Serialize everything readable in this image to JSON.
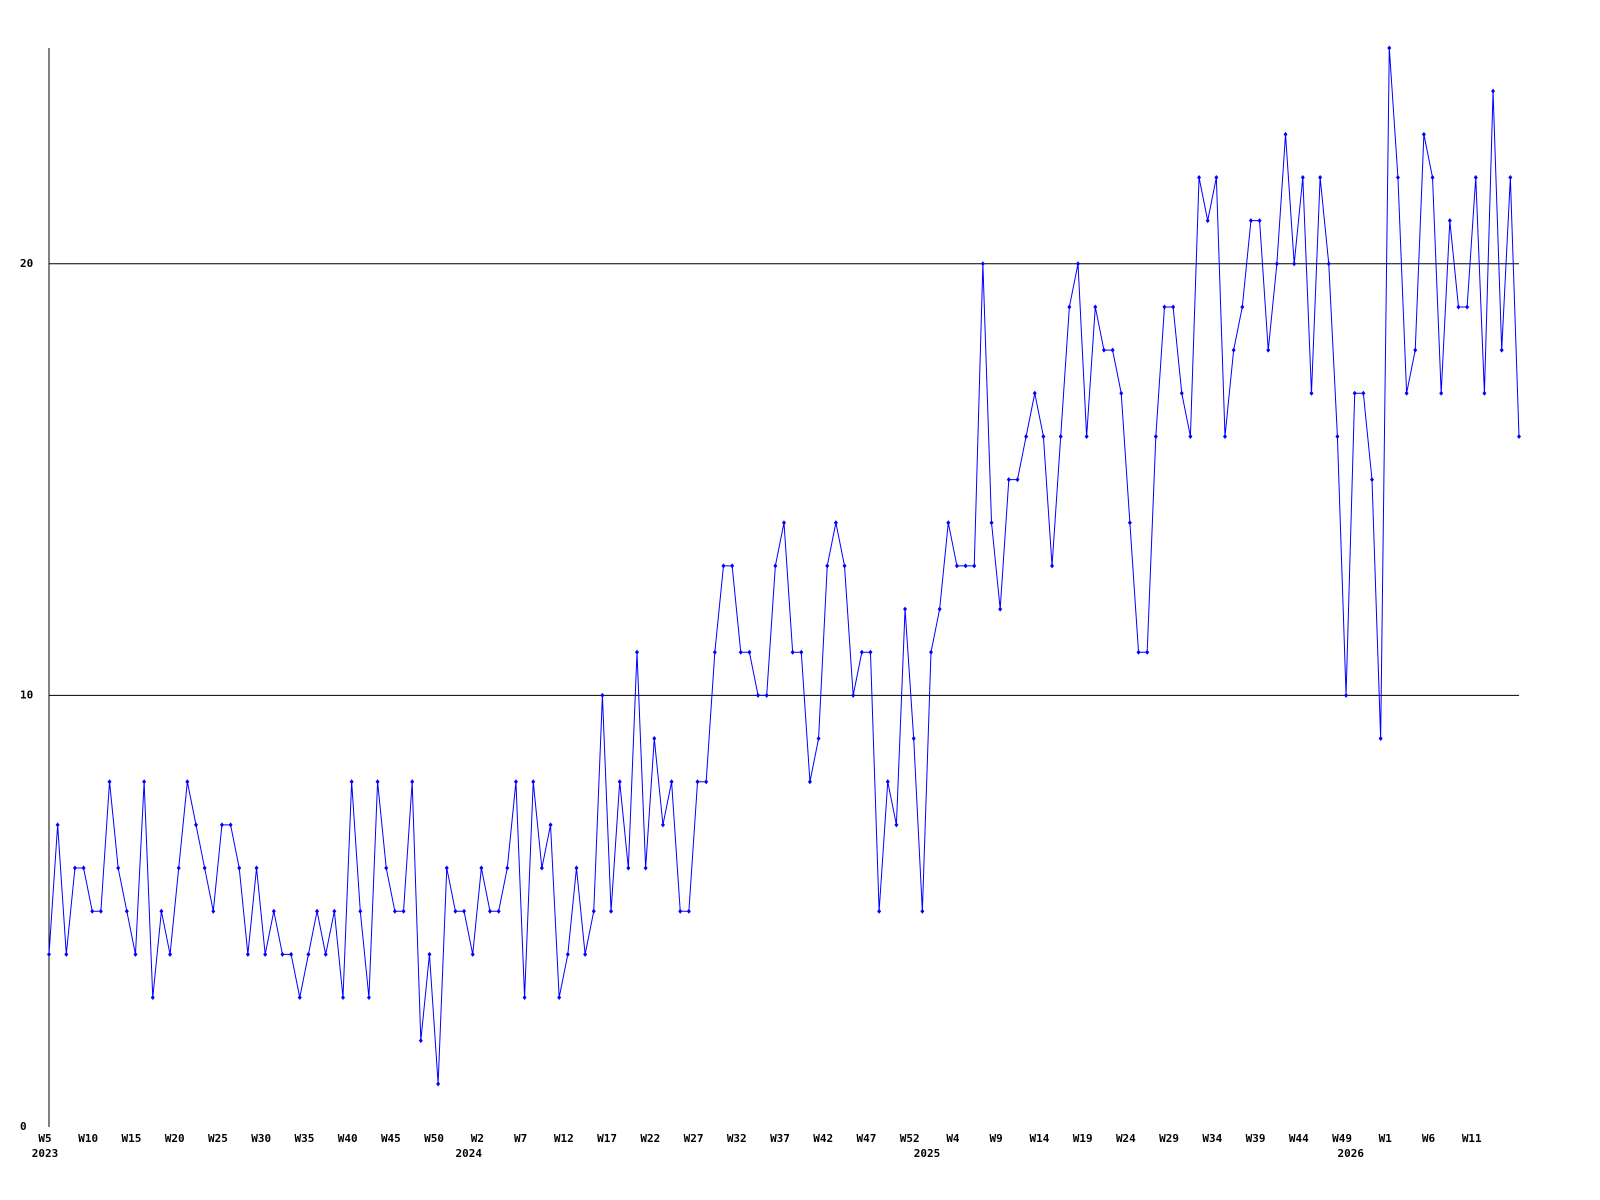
{
  "chart_data": {
    "type": "line",
    "categories": [
      "W5",
      null,
      null,
      null,
      null,
      "W10",
      null,
      null,
      null,
      null,
      "W15",
      null,
      null,
      null,
      null,
      "W20",
      null,
      null,
      null,
      null,
      "W25",
      null,
      null,
      null,
      null,
      "W30",
      null,
      null,
      null,
      null,
      "W35",
      null,
      null,
      null,
      null,
      "W40",
      null,
      null,
      null,
      null,
      "W45",
      null,
      null,
      null,
      null,
      "W50",
      null,
      null,
      null,
      null,
      "W2",
      null,
      null,
      null,
      null,
      "W7",
      null,
      null,
      null,
      null,
      "W12",
      null,
      null,
      null,
      null,
      "W17",
      null,
      null,
      null,
      null,
      "W22",
      null,
      null,
      null,
      null,
      "W27",
      null,
      null,
      null,
      null,
      "W32",
      null,
      null,
      null,
      null,
      "W37",
      null,
      null,
      null,
      null,
      "W42",
      null,
      null,
      null,
      null,
      "W47",
      null,
      null,
      null,
      null,
      "W52",
      null,
      null,
      null,
      null,
      "W4",
      null,
      null,
      null,
      null,
      "W9",
      null,
      null,
      null,
      null,
      "W14",
      null,
      null,
      null,
      null,
      "W19",
      null,
      null,
      null,
      null,
      "W24",
      null,
      null,
      null,
      null,
      "W29",
      null,
      null,
      null,
      null,
      "W34",
      null,
      null,
      null,
      null,
      "W39",
      null,
      null,
      null,
      null,
      "W44",
      null,
      null,
      null,
      null,
      "W49",
      null,
      null,
      null,
      null,
      "W1",
      null,
      null,
      null,
      null,
      "W6",
      null,
      null,
      null,
      null,
      "W11",
      null,
      null,
      null,
      null,
      null
    ],
    "years": [
      "2023",
      null,
      null,
      null,
      null,
      null,
      null,
      null,
      null,
      null,
      null,
      null,
      null,
      null,
      null,
      null,
      null,
      null,
      null,
      null,
      null,
      null,
      null,
      null,
      null,
      null,
      null,
      null,
      null,
      null,
      null,
      null,
      null,
      null,
      null,
      null,
      null,
      null,
      null,
      null,
      null,
      null,
      null,
      null,
      null,
      null,
      null,
      null,
      null,
      "2024",
      null,
      null,
      null,
      null,
      null,
      null,
      null,
      null,
      null,
      null,
      null,
      null,
      null,
      null,
      null,
      null,
      null,
      null,
      null,
      null,
      null,
      null,
      null,
      null,
      null,
      null,
      null,
      null,
      null,
      null,
      null,
      null,
      null,
      null,
      null,
      null,
      null,
      null,
      null,
      null,
      null,
      null,
      null,
      null,
      null,
      null,
      null,
      null,
      null,
      null,
      null,
      null,
      "2025",
      null,
      null,
      null,
      null,
      null,
      null,
      null,
      null,
      null,
      null,
      null,
      null,
      null,
      null,
      null,
      null,
      null,
      null,
      null,
      null,
      null,
      null,
      null,
      null,
      null,
      null,
      null,
      null,
      null,
      null,
      null,
      null,
      null,
      null,
      null,
      null,
      null,
      null,
      null,
      null,
      null,
      null,
      null,
      null,
      null,
      null,
      null,
      null,
      "2026",
      null,
      null,
      null,
      null,
      null,
      null,
      null,
      null,
      null,
      null,
      null,
      null,
      null,
      null,
      null
    ],
    "series": [
      {
        "color": "#0000ff",
        "values": [
          4,
          7,
          4,
          6,
          6,
          5,
          5,
          8,
          6,
          5,
          4,
          8,
          3,
          5,
          4,
          6,
          8,
          7,
          6,
          5,
          7,
          7,
          6,
          4,
          6,
          4,
          5,
          4,
          4,
          3,
          4,
          5,
          4,
          5,
          3,
          8,
          5,
          3,
          8,
          6,
          5,
          5,
          8,
          2,
          4,
          1,
          6,
          5,
          5,
          4,
          6,
          5,
          5,
          6,
          8,
          3,
          8,
          6,
          7,
          3,
          4,
          6,
          4,
          5,
          10,
          5,
          8,
          6,
          11,
          6,
          9,
          7,
          8,
          5,
          5,
          8,
          8,
          11,
          13,
          13,
          11,
          11,
          10,
          10,
          13,
          14,
          11,
          11,
          8,
          9,
          13,
          14,
          13,
          10,
          11,
          11,
          5,
          8,
          7,
          12,
          9,
          5,
          11,
          12,
          14,
          13,
          13,
          13,
          20,
          14,
          12,
          15,
          15,
          16,
          17,
          16,
          13,
          16,
          19,
          20,
          16,
          19,
          18,
          18,
          17,
          14,
          11,
          11,
          16,
          19,
          19,
          17,
          16,
          22,
          21,
          22,
          16,
          18,
          19,
          21,
          21,
          18,
          20,
          23,
          20,
          22,
          17,
          22,
          20,
          16,
          10,
          17,
          17,
          15,
          9,
          25,
          22,
          17,
          18,
          23,
          22,
          17,
          21,
          19,
          19,
          22,
          17,
          24,
          18,
          22,
          16
        ]
      }
    ],
    "ylim": [
      0,
      25
    ],
    "yticks": [
      0,
      10,
      20
    ],
    "grid": true
  }
}
